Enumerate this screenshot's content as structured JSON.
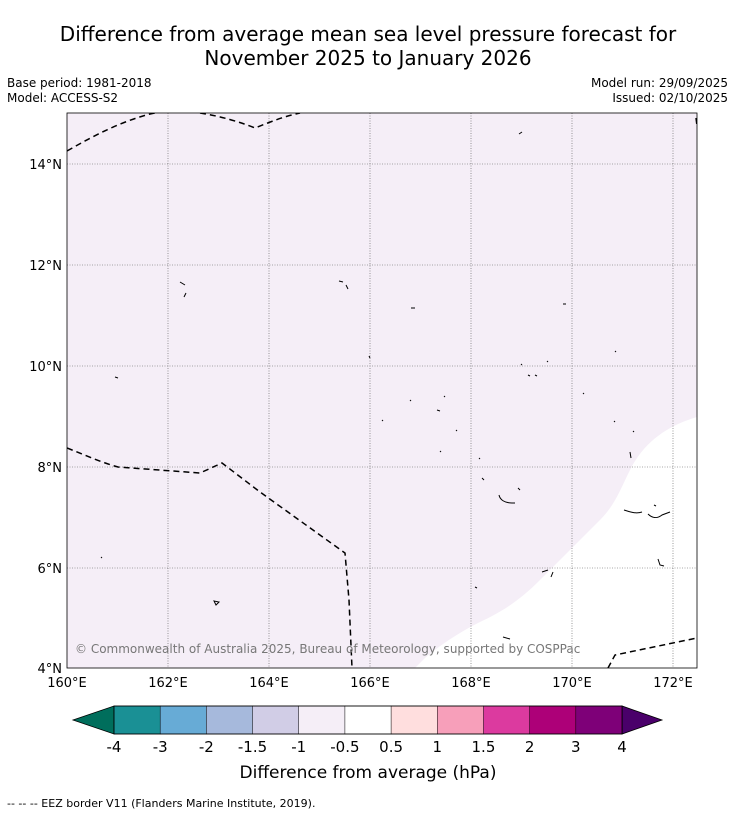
{
  "title": {
    "line1": "Difference from average mean sea level pressure forecast for",
    "line2": "November 2025 to January 2026"
  },
  "meta": {
    "base_period": "Base period: 1981-2018",
    "model": "Model: ACCESS-S2",
    "model_run": "Model run: 29/09/2025",
    "issued": "Issued: 02/10/2025"
  },
  "map": {
    "lat_labels": [
      "14°N",
      "12°N",
      "10°N",
      "8°N",
      "6°N",
      "4°N"
    ],
    "lon_labels": [
      "160°E",
      "162°E",
      "164°E",
      "166°E",
      "168°E",
      "170°E",
      "172°E"
    ],
    "copyright": "© Commonwealth of Australia 2025, Bureau of Meteorology, supported by COSPPac",
    "field_colors": {
      "minus_1_to_minus_0_5": "#f5eef7",
      "minus_0_5_to_0_5": "#ffffff"
    }
  },
  "colorbar": {
    "title": "Difference from average (hPa)",
    "tick_labels": [
      "-4",
      "-3",
      "-2",
      "-1.5",
      "-1",
      "-0.5",
      "0.5",
      "1",
      "1.5",
      "2",
      "3",
      "4"
    ],
    "low_extend_color": "#006e5c",
    "high_extend_color": "#4a006a",
    "segment_colors": [
      "#1a9095",
      "#67abd6",
      "#a6b9dc",
      "#d1cde6",
      "#f5eef7",
      "#ffffff",
      "#ffdede",
      "#f79fba",
      "#dc3a9f",
      "#ad0078",
      "#7e0078"
    ]
  },
  "footnote": "--  --  -- EEZ border V11 (Flanders Marine Institute, 2019)."
}
